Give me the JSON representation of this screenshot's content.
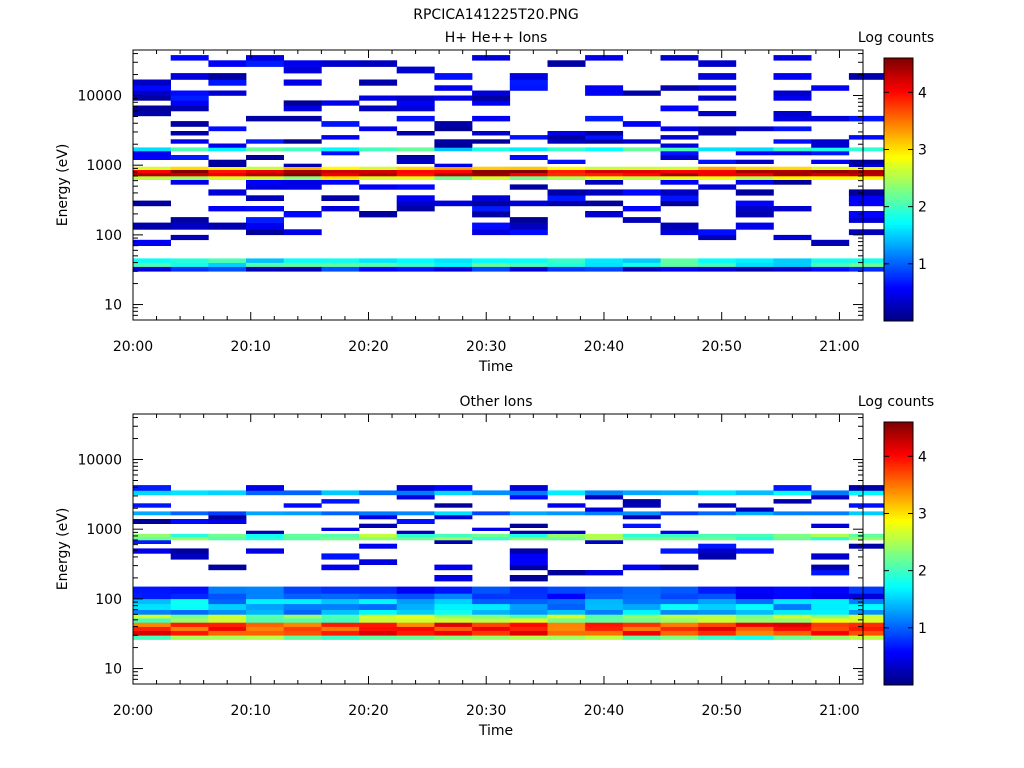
{
  "figure_title": "RPCICA141225T20.PNG",
  "colorbar_label": "Log counts",
  "colorbar_ticks": [
    "1",
    "2",
    "3",
    "4"
  ],
  "colorbar_range": [
    0,
    4.6
  ],
  "colormap": [
    "#00007f",
    "#0000ff",
    "#0080ff",
    "#00ffff",
    "#80ff80",
    "#ffff00",
    "#ff8000",
    "#ff0000",
    "#7f0000"
  ],
  "chart_data": [
    {
      "type": "heatmap",
      "title": "H+ He++ Ions",
      "xlabel": "Time",
      "ylabel": "Energy (eV)",
      "x_tick_labels": [
        "20:00",
        "20:10",
        "20:20",
        "20:30",
        "20:40",
        "20:50",
        "21:00"
      ],
      "x_range_minutes": [
        0,
        62
      ],
      "y_scale": "log",
      "y_range": [
        6,
        45000
      ],
      "y_tick_labels": [
        "10",
        "100",
        "1000",
        "10000"
      ],
      "time_bins_minutes": [
        0,
        3.2,
        6.4,
        9.6,
        12.8,
        16.0,
        19.2,
        22.4,
        25.6,
        28.8,
        32.0,
        35.2,
        38.4,
        41.6,
        44.8,
        48.0,
        51.2,
        54.4,
        57.6,
        60.8
      ],
      "energy_bins_eV": [
        10,
        12.3,
        15,
        18,
        22,
        26,
        30,
        35,
        40,
        46,
        53,
        60,
        70,
        85,
        100,
        120,
        150,
        180,
        220,
        260,
        310,
        370,
        450,
        530,
        620,
        700,
        780,
        860,
        950,
        1050,
        1200,
        1400,
        1600,
        1800,
        2050,
        2350,
        2700,
        3100,
        3600,
        4300,
        5100,
        6000,
        7200,
        8500,
        10000,
        11800,
        14000,
        17000,
        21000,
        26000,
        32000,
        38000
      ],
      "bands": [
        {
          "e_lo_eV": 700,
          "e_hi_eV": 860,
          "log_counts": 4.2
        },
        {
          "e_lo_eV": 620,
          "e_hi_eV": 700,
          "log_counts": 2.6
        },
        {
          "e_lo_eV": 860,
          "e_hi_eV": 950,
          "log_counts": 3.0
        },
        {
          "e_lo_eV": 1600,
          "e_hi_eV": 1800,
          "log_counts": 1.8
        },
        {
          "e_lo_eV": 35,
          "e_hi_eV": 46,
          "log_counts": 1.8
        },
        {
          "e_lo_eV": 30,
          "e_hi_eV": 35,
          "log_counts": 0.6
        }
      ],
      "scatter_density": 0.3,
      "scatter_e_range_eV": [
        70,
        38000
      ]
    },
    {
      "type": "heatmap",
      "title": "Other Ions",
      "xlabel": "Time",
      "ylabel": "Energy (eV)",
      "x_tick_labels": [
        "20:00",
        "20:10",
        "20:20",
        "20:30",
        "20:40",
        "20:50",
        "21:00"
      ],
      "x_range_minutes": [
        0,
        62
      ],
      "y_scale": "log",
      "y_range": [
        6,
        45000
      ],
      "y_tick_labels": [
        "10",
        "100",
        "1000",
        "10000"
      ],
      "time_bins_minutes": [
        0,
        3.2,
        6.4,
        9.6,
        12.8,
        16.0,
        19.2,
        22.4,
        25.6,
        28.8,
        32.0,
        35.2,
        38.4,
        41.6,
        44.8,
        48.0,
        51.2,
        54.4,
        57.6,
        60.8
      ],
      "energy_bins_eV": [
        10,
        12.3,
        15,
        18,
        22,
        26,
        30,
        35,
        40,
        46,
        53,
        60,
        70,
        85,
        100,
        120,
        150,
        180,
        220,
        260,
        310,
        370,
        450,
        530,
        620,
        700,
        780,
        860,
        950,
        1050,
        1200,
        1400,
        1600,
        1800,
        2050,
        2350,
        2700,
        3100,
        3600,
        4300,
        5100,
        6000,
        7200,
        8500,
        10000,
        11800,
        14000,
        17000,
        21000,
        26000,
        32000,
        38000
      ],
      "bands": [
        {
          "e_lo_eV": 30,
          "e_hi_eV": 46,
          "log_counts": 3.8
        },
        {
          "e_lo_eV": 46,
          "e_hi_eV": 60,
          "log_counts": 2.4
        },
        {
          "e_lo_eV": 26,
          "e_hi_eV": 30,
          "log_counts": 2.2
        },
        {
          "e_lo_eV": 60,
          "e_hi_eV": 100,
          "log_counts": 1.4
        },
        {
          "e_lo_eV": 100,
          "e_hi_eV": 150,
          "log_counts": 0.8
        },
        {
          "e_lo_eV": 700,
          "e_hi_eV": 860,
          "log_counts": 2.2
        },
        {
          "e_lo_eV": 1600,
          "e_hi_eV": 1800,
          "log_counts": 1.2
        },
        {
          "e_lo_eV": 3100,
          "e_hi_eV": 3600,
          "log_counts": 1.4
        }
      ],
      "scatter_density": 0.18,
      "scatter_e_range_eV": [
        150,
        4300
      ]
    }
  ]
}
